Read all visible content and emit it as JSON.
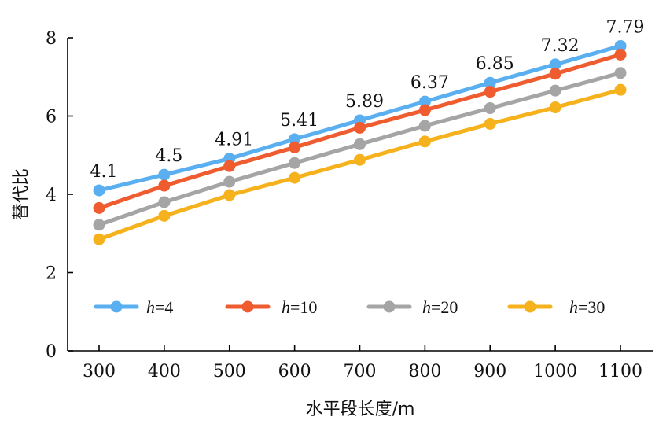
{
  "chart_data": {
    "type": "line",
    "xlabel": "水平段长度/m",
    "ylabel": "替代比",
    "categories": [
      "300",
      "400",
      "500",
      "600",
      "700",
      "800",
      "900",
      "1000",
      "1100"
    ],
    "ylim": [
      0,
      8
    ],
    "yticks": [
      "0",
      "2",
      "4",
      "6",
      "8"
    ],
    "grid": false,
    "legend_position": "inside-bottom",
    "series": [
      {
        "name": "h=4",
        "legend_var": "h",
        "legend_val": "=4",
        "color": "#5aaff0",
        "values": [
          4.1,
          4.5,
          4.91,
          5.41,
          5.89,
          6.37,
          6.85,
          7.32,
          7.79
        ],
        "labels": [
          "4.1",
          "4.5",
          "4.91",
          "5.41",
          "5.89",
          "6.37",
          "6.85",
          "7.32",
          "7.79"
        ]
      },
      {
        "name": "h=10",
        "legend_var": "h",
        "legend_val": "=10",
        "color": "#ef5c2f",
        "values": [
          3.65,
          4.22,
          4.72,
          5.2,
          5.7,
          6.15,
          6.62,
          7.08,
          7.57
        ]
      },
      {
        "name": "h=20",
        "legend_var": "h",
        "legend_val": "=20",
        "color": "#a5a5a5",
        "values": [
          3.22,
          3.8,
          4.32,
          4.8,
          5.28,
          5.75,
          6.2,
          6.65,
          7.1
        ]
      },
      {
        "name": "h=30",
        "legend_var": "h",
        "legend_val": "=30",
        "color": "#f5b21d",
        "values": [
          2.85,
          3.45,
          3.98,
          4.42,
          4.88,
          5.35,
          5.8,
          6.22,
          6.67
        ]
      }
    ]
  }
}
